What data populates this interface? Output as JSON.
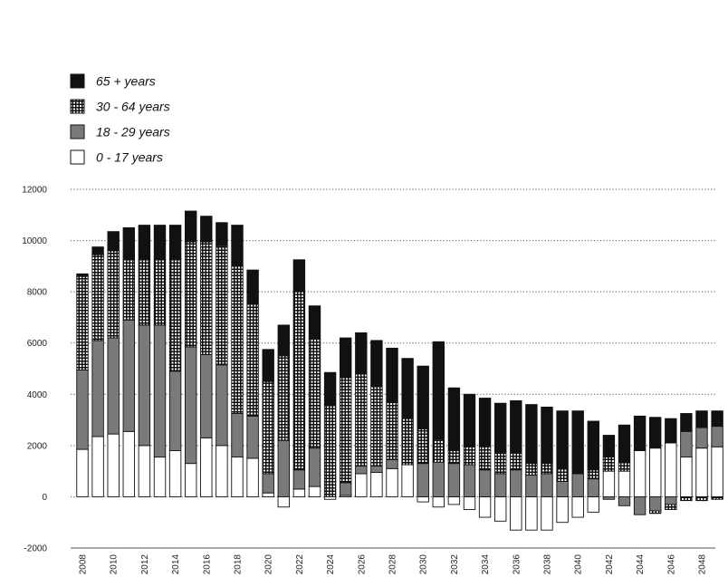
{
  "chart_data": {
    "type": "bar",
    "stacked": true,
    "grid": "horizontal dotted",
    "legend_position": "top-left",
    "ylim": [
      -2000,
      12000
    ],
    "yticks": [
      12000,
      10000,
      8000,
      6000,
      4000,
      2000,
      0,
      -2000
    ],
    "xtick_labels": [
      "2008",
      "2010",
      "2012",
      "2014",
      "2016",
      "2018",
      "2020",
      "2022",
      "2024",
      "2026",
      "2028",
      "2030",
      "2032",
      "2034",
      "2036",
      "2038",
      "2040",
      "2042",
      "2044",
      "2046",
      "2048"
    ],
    "categories": [
      2008,
      2009,
      2010,
      2011,
      2012,
      2013,
      2014,
      2015,
      2016,
      2017,
      2018,
      2019,
      2020,
      2021,
      2022,
      2023,
      2024,
      2025,
      2026,
      2027,
      2028,
      2029,
      2030,
      2031,
      2032,
      2033,
      2034,
      2035,
      2036,
      2037,
      2038,
      2039,
      2040,
      2041,
      2042,
      2043,
      2044,
      2045,
      2046,
      2047,
      2048,
      2049
    ],
    "series": [
      {
        "name": "0 - 17 years",
        "fill": "white",
        "values": [
          1850,
          2350,
          2450,
          2550,
          2000,
          1550,
          1800,
          1300,
          2300,
          2000,
          1550,
          1500,
          150,
          -400,
          300,
          400,
          -100,
          50,
          900,
          950,
          1100,
          1250,
          -200,
          -400,
          -300,
          -500,
          -800,
          -950,
          -1300,
          -1300,
          -1300,
          -1000,
          -800,
          -600,
          1000,
          1000,
          1800,
          1900,
          2100,
          1550,
          1900,
          1950
        ],
        "offset": [
          0,
          0,
          0,
          0,
          0,
          0,
          0,
          0,
          0,
          0,
          0,
          0,
          0,
          0,
          0,
          0,
          0,
          0,
          0,
          0,
          0,
          0,
          0,
          0,
          0,
          0,
          0,
          0,
          0,
          0,
          0,
          0,
          0,
          0,
          0,
          0,
          0,
          0,
          0,
          0,
          0,
          0
        ],
        "neg_offset": [
          0,
          0,
          0,
          0,
          0,
          0,
          0,
          0,
          0,
          0,
          0,
          0,
          0,
          0,
          0,
          0,
          0,
          0,
          0,
          0,
          0,
          0,
          0,
          0,
          0,
          0,
          0,
          0,
          0,
          0,
          0,
          0,
          0,
          0,
          0,
          0,
          0,
          -200,
          -300,
          -100,
          -200,
          -300
        ]
      },
      {
        "name": "18 - 29 years",
        "fill": "gray",
        "values": [
          3100,
          3750,
          3750,
          4350,
          4700,
          5150,
          3100,
          4550,
          3250,
          3150,
          1700,
          1650,
          750,
          2200,
          750,
          1500,
          0,
          500,
          300,
          250,
          350,
          0,
          1300,
          1350,
          1300,
          1250,
          1050,
          900,
          1050,
          850,
          900,
          600,
          900,
          700,
          -100,
          -350,
          -700,
          -550,
          -300,
          1000,
          800,
          800
        ],
        "neg_offset": [
          0,
          0,
          0,
          0,
          0,
          0,
          0,
          0,
          0,
          0,
          0,
          0,
          0,
          0,
          0,
          0,
          0,
          0,
          0,
          0,
          0,
          0,
          0,
          0,
          0,
          0,
          0,
          0,
          0,
          0,
          0,
          0,
          0,
          0,
          0,
          0,
          0,
          0,
          0,
          0,
          0,
          0
        ]
      },
      {
        "name": "30 - 64 years",
        "fill": "dotted",
        "values": [
          3650,
          3350,
          3400,
          2350,
          2550,
          2550,
          4400,
          4100,
          4400,
          4650,
          5750,
          4400,
          3600,
          3300,
          6950,
          4250,
          3600,
          4100,
          3600,
          3100,
          2250,
          1800,
          1350,
          900,
          500,
          700,
          950,
          850,
          700,
          450,
          400,
          500,
          0,
          350,
          550,
          350,
          0,
          -100,
          -200,
          -150,
          -150,
          -100
        ],
        "neg_offset": [
          0,
          0,
          0,
          0,
          0,
          0,
          0,
          0,
          0,
          0,
          0,
          0,
          0,
          0,
          0,
          0,
          0,
          0,
          0,
          0,
          0,
          0,
          0,
          0,
          0,
          0,
          0,
          0,
          0,
          0,
          0,
          0,
          0,
          0,
          0,
          0,
          0,
          -100,
          -200,
          -150,
          -150,
          -100
        ]
      },
      {
        "name": "65 + years",
        "fill": "black",
        "values": [
          100,
          300,
          750,
          1250,
          1350,
          1350,
          1300,
          1200,
          1000,
          900,
          1600,
          1300,
          1250,
          1200,
          1250,
          1300,
          1250,
          1550,
          1600,
          1800,
          2100,
          2350,
          2450,
          3800,
          2450,
          2050,
          1850,
          1900,
          2000,
          2300,
          2200,
          2250,
          2450,
          1900,
          850,
          1450,
          1350,
          1200,
          950,
          700,
          650,
          600
        ]
      }
    ]
  },
  "legend": [
    {
      "label": "65 + years",
      "fill": "black"
    },
    {
      "label": "30 - 64 years",
      "fill": "dotted"
    },
    {
      "label": "18 - 29 years",
      "fill": "gray"
    },
    {
      "label": "0 - 17 years",
      "fill": "white"
    }
  ],
  "colors": {
    "black": "#111111",
    "gray": "#7a7a7a",
    "white": "#ffffff",
    "grid": "#555555",
    "axis": "#222222"
  }
}
